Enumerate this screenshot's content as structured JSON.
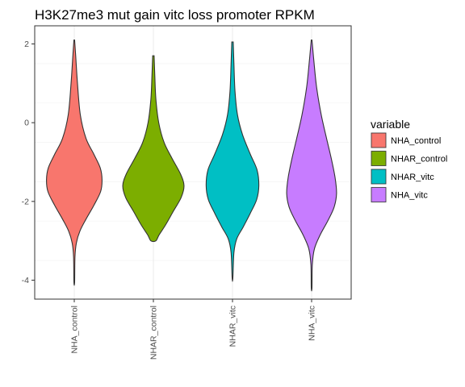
{
  "chart_data": {
    "type": "violin",
    "title": "H3K27me3 mut gain vitc loss promoter RPKM",
    "xlabel": "",
    "ylabel": "",
    "ylim": [
      -4.5,
      2.5
    ],
    "y_ticks": [
      2,
      0,
      -2,
      -4
    ],
    "y_tick_labels": [
      "2",
      "0",
      "-2",
      "-4"
    ],
    "grid": true,
    "legend": {
      "title": "variable",
      "position": "right"
    },
    "categories": [
      "NHA_control",
      "NHAR_control",
      "NHAR_vitc",
      "NHA_vitc"
    ],
    "series": [
      {
        "name": "NHA_control",
        "color": "#F8766D",
        "y_min": -4.05,
        "y_max": 2.1,
        "mode": -1.6,
        "profile": [
          [
            2.1,
            0.01
          ],
          [
            1.7,
            0.04
          ],
          [
            1.0,
            0.09
          ],
          [
            0.2,
            0.17
          ],
          [
            -0.4,
            0.33
          ],
          [
            -0.8,
            0.55
          ],
          [
            -1.15,
            0.73
          ],
          [
            -1.45,
            0.78
          ],
          [
            -1.75,
            0.74
          ],
          [
            -2.1,
            0.55
          ],
          [
            -2.45,
            0.33
          ],
          [
            -2.75,
            0.16
          ],
          [
            -3.05,
            0.06
          ],
          [
            -3.4,
            0.02
          ],
          [
            -4.05,
            0.01
          ]
        ]
      },
      {
        "name": "NHAR_control",
        "color": "#7CAE00",
        "y_min": -3.0,
        "y_max": 1.7,
        "mode": -1.6,
        "profile": [
          [
            1.7,
            0.02
          ],
          [
            1.2,
            0.04
          ],
          [
            0.6,
            0.07
          ],
          [
            0.0,
            0.15
          ],
          [
            -0.5,
            0.3
          ],
          [
            -0.9,
            0.52
          ],
          [
            -1.3,
            0.76
          ],
          [
            -1.6,
            0.86
          ],
          [
            -1.9,
            0.78
          ],
          [
            -2.25,
            0.56
          ],
          [
            -2.6,
            0.34
          ],
          [
            -2.85,
            0.16
          ],
          [
            -3.0,
            0.07
          ]
        ]
      },
      {
        "name": "NHAR_vitc",
        "color": "#00BFC4",
        "y_min": -3.95,
        "y_max": 2.05,
        "mode": -1.6,
        "profile": [
          [
            2.05,
            0.02
          ],
          [
            1.5,
            0.04
          ],
          [
            0.8,
            0.07
          ],
          [
            0.2,
            0.14
          ],
          [
            -0.3,
            0.28
          ],
          [
            -0.8,
            0.5
          ],
          [
            -1.2,
            0.69
          ],
          [
            -1.6,
            0.74
          ],
          [
            -1.95,
            0.68
          ],
          [
            -2.3,
            0.5
          ],
          [
            -2.65,
            0.3
          ],
          [
            -2.95,
            0.12
          ],
          [
            -3.3,
            0.04
          ],
          [
            -3.95,
            0.01
          ]
        ]
      },
      {
        "name": "NHA_vitc",
        "color": "#C77CFF",
        "y_min": -4.2,
        "y_max": 2.1,
        "mode": -1.8,
        "profile": [
          [
            2.1,
            0.01
          ],
          [
            1.6,
            0.06
          ],
          [
            0.9,
            0.14
          ],
          [
            0.2,
            0.27
          ],
          [
            -0.4,
            0.42
          ],
          [
            -0.9,
            0.55
          ],
          [
            -1.4,
            0.66
          ],
          [
            -1.8,
            0.7
          ],
          [
            -2.15,
            0.63
          ],
          [
            -2.5,
            0.45
          ],
          [
            -2.85,
            0.24
          ],
          [
            -3.2,
            0.08
          ],
          [
            -3.6,
            0.02
          ],
          [
            -4.2,
            0.01
          ]
        ]
      }
    ]
  }
}
